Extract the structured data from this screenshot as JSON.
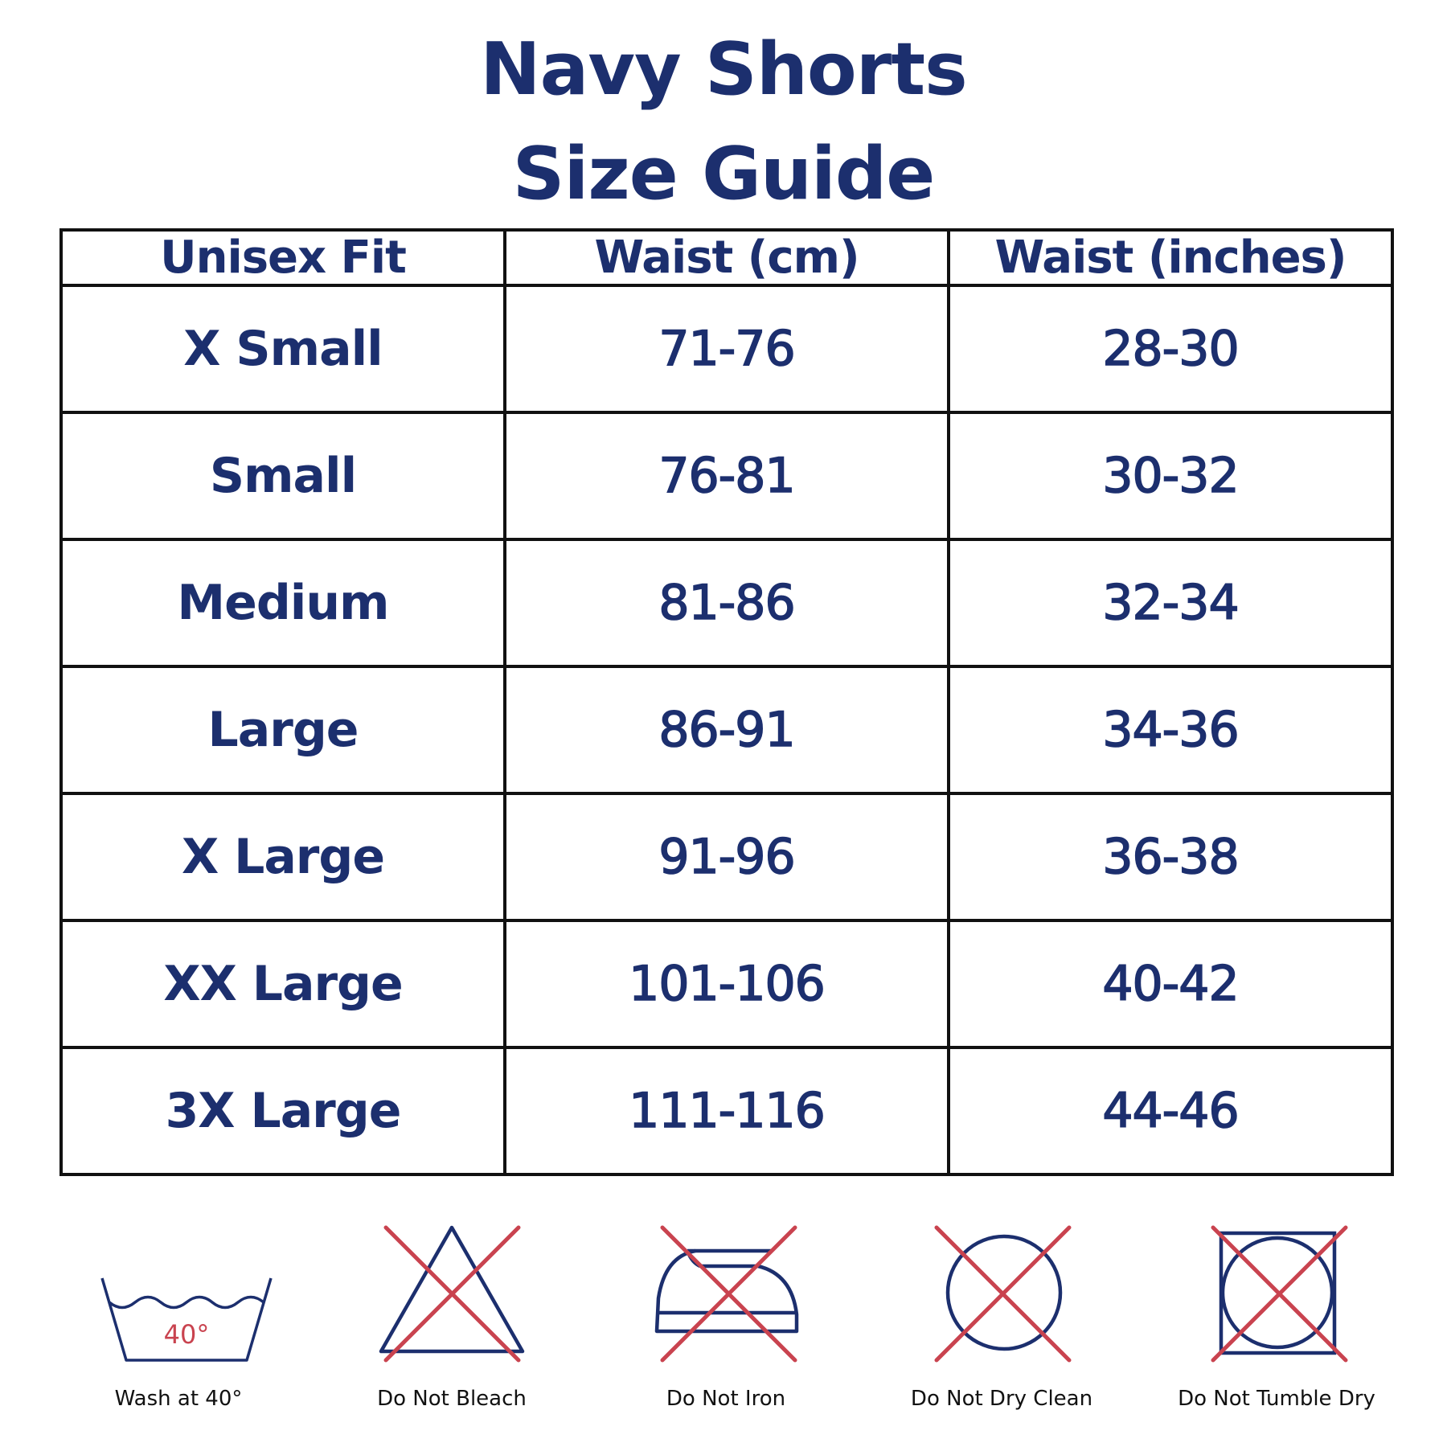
{
  "title": {
    "line1": "Navy Shorts",
    "line2": "Size Guide"
  },
  "table": {
    "headers": [
      "Unisex Fit",
      "Waist (cm)",
      "Waist (inches)"
    ],
    "rows": [
      [
        "X Small",
        "71-76",
        "28-30"
      ],
      [
        "Small",
        "76-81",
        "30-32"
      ],
      [
        "Medium",
        "81-86",
        "32-34"
      ],
      [
        "Large",
        "86-91",
        "34-36"
      ],
      [
        "X Large",
        "91-96",
        "36-38"
      ],
      [
        "XX Large",
        "101-106",
        "40-42"
      ],
      [
        "3X Large",
        "111-116",
        "44-46"
      ]
    ]
  },
  "care": [
    {
      "icon": "wash-tub-icon",
      "label": "Wash at 40°",
      "temp": "40°"
    },
    {
      "icon": "no-bleach-icon",
      "label": "Do Not Bleach"
    },
    {
      "icon": "no-iron-icon",
      "label": "Do Not Iron"
    },
    {
      "icon": "no-dry-clean-icon",
      "label": "Do Not Dry Clean"
    },
    {
      "icon": "no-tumble-dry-icon",
      "label": "Do Not Tumble Dry"
    }
  ],
  "colors": {
    "navy": "#1c2f6e",
    "cross_red": "#c9434f",
    "border": "#111111"
  }
}
